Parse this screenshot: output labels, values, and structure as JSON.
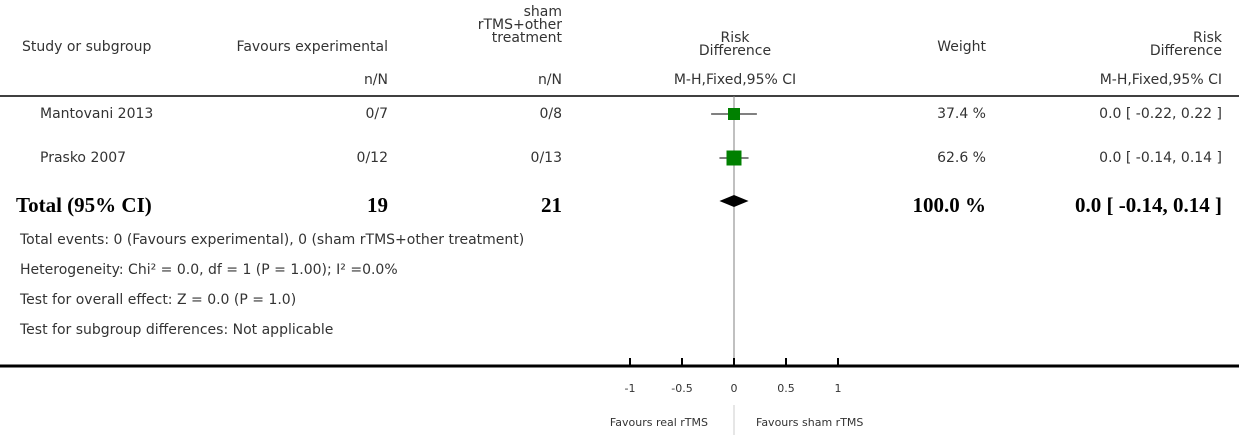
{
  "header": {
    "study": "Study or subgroup",
    "experimental": "Favours experimental",
    "control_lines": [
      "sham",
      "rTMS+other",
      "treatment"
    ],
    "effect_lines": [
      "Risk",
      "Difference"
    ],
    "weight": "Weight",
    "effect2_lines": [
      "Risk",
      "Difference"
    ],
    "exp_unit": "n/N",
    "ctl_unit": "n/N",
    "method": "M-H,Fixed,95% CI",
    "method2": "M-H,Fixed,95% CI"
  },
  "studies": [
    {
      "name": "Mantovani 2013",
      "exp": "0/7",
      "ctl": "0/8",
      "weight": "37.4 %",
      "ci_text": "0.0 [ -0.22, 0.22 ]"
    },
    {
      "name": "Prasko 2007",
      "exp": "0/12",
      "ctl": "0/13",
      "weight": "62.6 %",
      "ci_text": "0.0 [ -0.14, 0.14 ]"
    }
  ],
  "total": {
    "label": "Total (95% CI)",
    "exp": "19",
    "ctl": "21",
    "weight": "100.0 %",
    "ci_text": "0.0 [ -0.14, 0.14 ]"
  },
  "notes": [
    "Total events: 0 (Favours experimental), 0 (sham rTMS+other treatment)",
    "Heterogeneity: Chi² = 0.0, df = 1 (P = 1.00); I² =0.0%",
    "Test for overall effect: Z = 0.0 (P = 1.0)",
    "Test for subgroup differences: Not applicable"
  ],
  "axis": {
    "favours_left": "Favours real rTMS",
    "favours_right": "Favours sham rTMS"
  },
  "colors": {
    "marker": "#008000",
    "line": "#000000",
    "axis": "#000000"
  },
  "chart_data": {
    "type": "forest",
    "measure": "Risk Difference",
    "method": "M-H,Fixed,95% CI",
    "xlim": [
      -1,
      1
    ],
    "ticks": [
      -1,
      -0.5,
      0,
      0.5,
      1
    ],
    "tick_labels": [
      "-1",
      "-0.5",
      "0",
      "0.5",
      "1"
    ],
    "studies": [
      {
        "name": "Mantovani 2013",
        "estimate": 0.0,
        "ci_low": -0.22,
        "ci_high": 0.22,
        "weight": 37.4
      },
      {
        "name": "Prasko 2007",
        "estimate": 0.0,
        "ci_low": -0.14,
        "ci_high": 0.14,
        "weight": 62.6
      }
    ],
    "total": {
      "estimate": 0.0,
      "ci_low": -0.14,
      "ci_high": 0.14,
      "weight": 100.0
    }
  }
}
